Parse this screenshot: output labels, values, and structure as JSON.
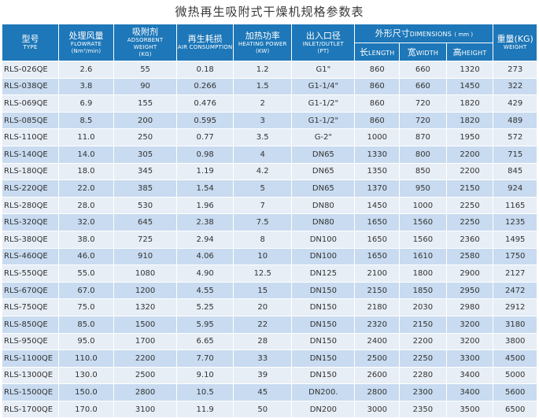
{
  "title": "微热再生吸附式干燥机规格参数表",
  "headers": {
    "model": {
      "cn": "型号",
      "en": "TYPE"
    },
    "flow": {
      "cn": "处理风量",
      "en": "FLOWRATE",
      "unit": "(Nm³/min)"
    },
    "adsorbent": {
      "cn": "吸附剂",
      "en": "ADSORBENT",
      "en2": "WEIGHT",
      "unit": "(KG)"
    },
    "air": {
      "cn": "再生耗损",
      "en": "AIR CONSUMPTION"
    },
    "power": {
      "cn": "加热功率",
      "en": "HEATING POWER",
      "unit": "(KW)"
    },
    "inlet": {
      "cn": "出入口径",
      "en": "INLET/OUTLET",
      "unit": "(PT)"
    },
    "dimensions": {
      "cn": "外形尺寸",
      "en": "DIMENSIONS",
      "unit": "( mm )"
    },
    "length": {
      "cn": "长",
      "en": "LENGTH"
    },
    "width": {
      "cn": "宽",
      "en": "WIDTH"
    },
    "height": {
      "cn": "高",
      "en": "HEIGHT"
    },
    "weight": {
      "cn": "重量(KG)",
      "en": "WEIGHT"
    }
  },
  "rows": [
    [
      "RLS-026QE",
      "2.6",
      "55",
      "0.18",
      "1.2",
      "G1\"",
      "860",
      "660",
      "1320",
      "273"
    ],
    [
      "RLS-038QE",
      "3.8",
      "90",
      "0.266",
      "1.5",
      "G1-1/4\"",
      "860",
      "660",
      "1450",
      "322"
    ],
    [
      "RLS-069QE",
      "6.9",
      "155",
      "0.476",
      "2",
      "G1-1/2\"",
      "860",
      "720",
      "1820",
      "429"
    ],
    [
      "RLS-085QE",
      "8.5",
      "200",
      "0.595",
      "3",
      "G1-1/2\"",
      "860",
      "720",
      "1820",
      "489"
    ],
    [
      "RLS-110QE",
      "11.0",
      "250",
      "0.77",
      "3.5",
      "G-2\"",
      "1000",
      "870",
      "1950",
      "572"
    ],
    [
      "RLS-140QE",
      "14.0",
      "305",
      "0.98",
      "4",
      "DN65",
      "1330",
      "800",
      "2200",
      "715"
    ],
    [
      "RLS-180QE",
      "18.0",
      "345",
      "1.19",
      "4.2",
      "DN65",
      "1350",
      "850",
      "2200",
      "845"
    ],
    [
      "RLS-220QE",
      "22.0",
      "385",
      "1.54",
      "5",
      "DN65",
      "1370",
      "950",
      "2150",
      "924"
    ],
    [
      "RLS-280QE",
      "28.0",
      "530",
      "1.96",
      "7",
      "DN80",
      "1450",
      "1000",
      "2250",
      "1165"
    ],
    [
      "RLS-320QE",
      "32.0",
      "645",
      "2.38",
      "7.5",
      "DN80",
      "1650",
      "1560",
      "2250",
      "1235"
    ],
    [
      "RLS-380QE",
      "38.0",
      "725",
      "2.94",
      "8",
      "DN100",
      "1650",
      "1560",
      "2360",
      "1495"
    ],
    [
      "RLS-460QE",
      "46.0",
      "910",
      "4.06",
      "10",
      "DN100",
      "1650",
      "1610",
      "2580",
      "1750"
    ],
    [
      "RLS-550QE",
      "55.0",
      "1080",
      "4.90",
      "12.5",
      "DN125",
      "2100",
      "1800",
      "2900",
      "2127"
    ],
    [
      "RLS-670QE",
      "67.0",
      "1200",
      "4.55",
      "15",
      "DN150",
      "2150",
      "1850",
      "2950",
      "2472"
    ],
    [
      "RLS-750QE",
      "75.0",
      "1320",
      "5.25",
      "20",
      "DN150",
      "2180",
      "2030",
      "2980",
      "2912"
    ],
    [
      "RLS-850QE",
      "85.0",
      "1500",
      "5.95",
      "22",
      "DN150",
      "2320",
      "2150",
      "3200",
      "3180"
    ],
    [
      "RLS-950QE",
      "95.0",
      "1700",
      "6.65",
      "28",
      "DN150",
      "2400",
      "2200",
      "3200",
      "3800"
    ],
    [
      "RLS-1100QE",
      "110.0",
      "2200",
      "7.70",
      "33",
      "DN150",
      "2500",
      "2250",
      "3300",
      "4500"
    ],
    [
      "RLS-1300QE",
      "130.0",
      "2500",
      "9.10",
      "39",
      "DN150",
      "2600",
      "2280",
      "3400",
      "5000"
    ],
    [
      "RLS-1500QE",
      "150.0",
      "2800",
      "10.5",
      "45",
      "DN200.",
      "2800",
      "2300",
      "3400",
      "5600"
    ],
    [
      "RLS-1700QE",
      "170.0",
      "3100",
      "11.9",
      "50",
      "DN200",
      "3000",
      "2350",
      "3500",
      "6500"
    ]
  ]
}
